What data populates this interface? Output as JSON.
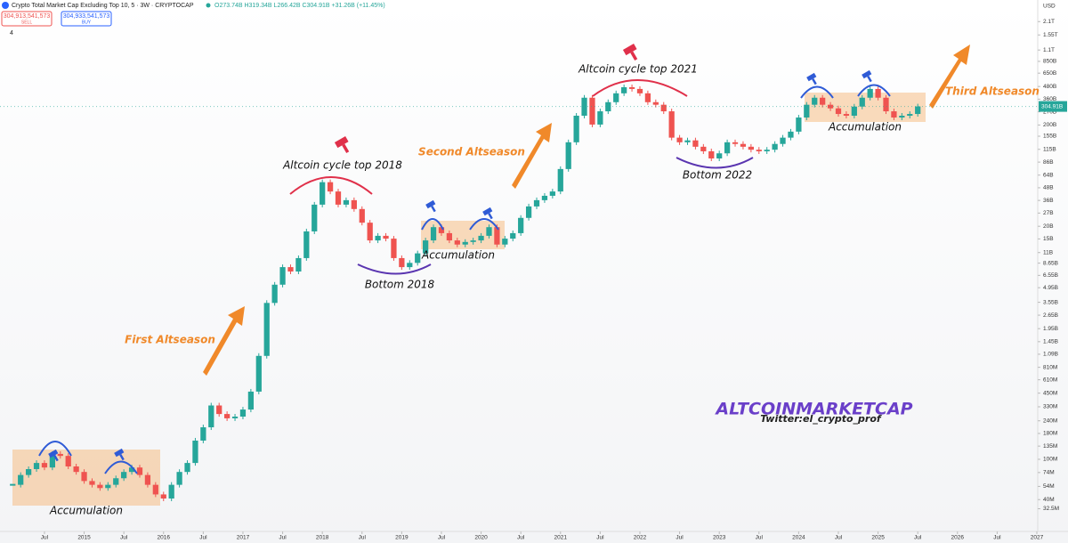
{
  "header": {
    "title": "Crypto Total Market Cap Excluding Top 10, 5 · 3W · CRYPTOCAP",
    "ohlc": "O273.74B H319.34B L266.42B C304.91B +31.26B (+11.45%)",
    "sell": {
      "price": "304,913,541,573",
      "label": "SELL"
    },
    "buy": {
      "price": "304,933,541,573",
      "label": "BUY"
    },
    "indicator_count": "4"
  },
  "chart_data": {
    "type": "candlestick",
    "log_scale": true,
    "grid": false,
    "y_unit": "USD",
    "colors": {
      "up": "#26a69a",
      "down": "#ef5350"
    },
    "x": [
      2014.1,
      2014.2,
      2014.3,
      2014.4,
      2014.5,
      2014.6,
      2014.7,
      2014.8,
      2014.9,
      2015.0,
      2015.1,
      2015.2,
      2015.3,
      2015.4,
      2015.5,
      2015.6,
      2015.7,
      2015.8,
      2015.9,
      2016.0,
      2016.1,
      2016.2,
      2016.3,
      2016.4,
      2016.5,
      2016.6,
      2016.7,
      2016.8,
      2016.9,
      2017.0,
      2017.1,
      2017.2,
      2017.3,
      2017.4,
      2017.5,
      2017.6,
      2017.7,
      2017.8,
      2017.9,
      2018.0,
      2018.1,
      2018.2,
      2018.3,
      2018.4,
      2018.5,
      2018.6,
      2018.7,
      2018.8,
      2018.9,
      2019.0,
      2019.1,
      2019.2,
      2019.3,
      2019.4,
      2019.5,
      2019.6,
      2019.7,
      2019.8,
      2019.9,
      2020.0,
      2020.1,
      2020.2,
      2020.3,
      2020.4,
      2020.5,
      2020.6,
      2020.7,
      2020.8,
      2020.9,
      2021.0,
      2021.1,
      2021.2,
      2021.3,
      2021.4,
      2021.5,
      2021.6,
      2021.7,
      2021.8,
      2021.9,
      2022.0,
      2022.1,
      2022.2,
      2022.3,
      2022.4,
      2022.5,
      2022.6,
      2022.7,
      2022.8,
      2022.9,
      2023.0,
      2023.1,
      2023.2,
      2023.3,
      2023.4,
      2023.5,
      2023.6,
      2023.7,
      2023.8,
      2023.9,
      2024.0,
      2024.1,
      2024.2,
      2024.3,
      2024.4,
      2024.5,
      2024.6,
      2024.7,
      2024.8,
      2024.9,
      2025.0,
      2025.1,
      2025.2,
      2025.3,
      2025.4,
      2025.5
    ],
    "close": [
      56000000.0,
      70000000.0,
      80000000.0,
      92000000.0,
      83000000.0,
      113000000.0,
      108000000.0,
      85000000.0,
      75000000.0,
      61000000.0,
      56000000.0,
      52000000.0,
      56000000.0,
      65000000.0,
      75000000.0,
      83000000.0,
      70000000.0,
      56000000.0,
      45000000.0,
      41000000.0,
      56000000.0,
      75000000.0,
      92000000.0,
      153000000.0,
      207000000.0,
      340000000.0,
      280000000.0,
      254000000.0,
      264000000.0,
      310000000.0,
      466000000.0,
      1050000000.0,
      3500000000.0,
      5300000000.0,
      7900000000.0,
      7150000000.0,
      9700000000.0,
      17800000000.0,
      32700000000.0,
      54500000000.0,
      44100000000.0,
      32700000000.0,
      36200000000.0,
      29600000000.0,
      21700000000.0,
      14500000000.0,
      16100000000.0,
      15100000000.0,
      9700000000.0,
      7900000000.0,
      8700000000.0,
      10800000000.0,
      14500000000.0,
      19600000000.0,
      17100000000.0,
      14500000000.0,
      13200000000.0,
      14000000000.0,
      14500000000.0,
      16100000000.0,
      19600000000.0,
      13200000000.0,
      15100000000.0,
      17100000000.0,
      24200000000.0,
      31400000000.0,
      36200000000.0,
      40000000000.0,
      44100000000.0,
      73500000000.0,
      135000000000.0,
      247000000000.0,
      372000000000.0,
      202000000000.0,
      273000000000.0,
      336000000000.0,
      411000000000.0,
      472000000000.0,
      454000000000.0,
      411000000000.0,
      336000000000.0,
      317000000000.0,
      273000000000.0,
      150000000000.0,
      135000000000.0,
      141000000000.0,
      122000000000.0,
      110000000000.0,
      93500000000.0,
      105000000000.0,
      135000000000.0,
      130000000000.0,
      122000000000.0,
      114000000000.0,
      110000000000.0,
      114000000000.0,
      130000000000.0,
      150000000000.0,
      172000000000.0,
      237000000000.0,
      317000000000.0,
      372000000000.0,
      317000000000.0,
      292000000000.0,
      257000000000.0,
      247000000000.0,
      304000000000.0,
      372000000000.0,
      454000000000.0,
      372000000000.0,
      273000000000.0,
      237000000000.0,
      247000000000.0,
      257000000000.0,
      305000000000.0
    ],
    "last_price": {
      "value": 304910000000.0,
      "label": "304.91B"
    },
    "xlim": [
      2013.94,
      2027.0
    ],
    "xticks": [
      {
        "value": 2014.5,
        "label": "Jul"
      },
      2015,
      {
        "value": 2015.5,
        "label": "Jul"
      },
      2016,
      {
        "value": 2016.5,
        "label": "Jul"
      },
      2017,
      {
        "value": 2017.5,
        "label": "Jul"
      },
      2018,
      {
        "value": 2018.5,
        "label": "Jul"
      },
      2019,
      {
        "value": 2019.5,
        "label": "Jul"
      },
      2020,
      {
        "value": 2020.5,
        "label": "Jul"
      },
      2021,
      {
        "value": 2021.5,
        "label": "Jul"
      },
      2022,
      {
        "value": 2022.5,
        "label": "Jul"
      },
      2023,
      {
        "value": 2023.5,
        "label": "Jul"
      },
      2024,
      {
        "value": 2024.5,
        "label": "Jul"
      },
      2025,
      {
        "value": 2025.5,
        "label": "Jul"
      },
      2026,
      {
        "value": 2026.5,
        "label": "Jul"
      },
      2027
    ],
    "ylim": [
      19400000.0,
      3100000000000.0
    ],
    "yticks": [
      {
        "value": 2100000000000.0,
        "label": "2.1T"
      },
      {
        "value": 1550000000000.0,
        "label": "1.55T"
      },
      {
        "value": 1100000000000.0,
        "label": "1.1T"
      },
      {
        "value": 850000000000.0,
        "label": "850B"
      },
      {
        "value": 650000000000.0,
        "label": "650B"
      },
      {
        "value": 480000000000.0,
        "label": "480B"
      },
      {
        "value": 360000000000.0,
        "label": "360B"
      },
      {
        "value": 270000000000.0,
        "label": "270B"
      },
      {
        "value": 200000000000.0,
        "label": "200B"
      },
      {
        "value": 155000000000.0,
        "label": "155B"
      },
      {
        "value": 115000000000.0,
        "label": "115B"
      },
      {
        "value": 86000000000.0,
        "label": "86B"
      },
      {
        "value": 64000000000.0,
        "label": "64B"
      },
      {
        "value": 48000000000.0,
        "label": "48B"
      },
      {
        "value": 36000000000.0,
        "label": "36B"
      },
      {
        "value": 27000000000.0,
        "label": "27B"
      },
      {
        "value": 20000000000.0,
        "label": "20B"
      },
      {
        "value": 15000000000.0,
        "label": "15B"
      },
      {
        "value": 11000000000.0,
        "label": "11B"
      },
      {
        "value": 8650000000.0,
        "label": "8.65B"
      },
      {
        "value": 6550000000.0,
        "label": "6.55B"
      },
      {
        "value": 4950000000.0,
        "label": "4.95B"
      },
      {
        "value": 3550000000.0,
        "label": "3.55B"
      },
      {
        "value": 2650000000.0,
        "label": "2.65B"
      },
      {
        "value": 1950000000.0,
        "label": "1.95B"
      },
      {
        "value": 1450000000.0,
        "label": "1.45B"
      },
      {
        "value": 1090000000.0,
        "label": "1.09B"
      },
      {
        "value": 810000000.0,
        "label": "810M"
      },
      {
        "value": 610000000.0,
        "label": "610M"
      },
      {
        "value": 450000000.0,
        "label": "450M"
      },
      {
        "value": 330000000.0,
        "label": "330M"
      },
      {
        "value": 240000000.0,
        "label": "240M"
      },
      {
        "value": 180000000.0,
        "label": "180M"
      },
      {
        "value": 135000000.0,
        "label": "135M"
      },
      {
        "value": 100000000.0,
        "label": "100M"
      },
      {
        "value": 74000000.0,
        "label": "74M"
      },
      {
        "value": 54000000.0,
        "label": "54M"
      },
      {
        "value": 40000000.0,
        "label": "40M"
      },
      {
        "value": 32500000.0,
        "label": "32.5M"
      }
    ],
    "annotations": {
      "accumulation": "Accumulation",
      "first": "First Altseason",
      "second": "Second Altseason",
      "third": "Third Altseason",
      "top_2018": "Altcoin cycle top 2018",
      "top_2021": "Altcoin cycle top 2021",
      "bottom_2018": "Bottom 2018",
      "bottom_2022": "Bottom 2022",
      "brand": "ALTCOINMARKETCAP",
      "twitter": "Twitter:el_crypto_prof"
    }
  }
}
